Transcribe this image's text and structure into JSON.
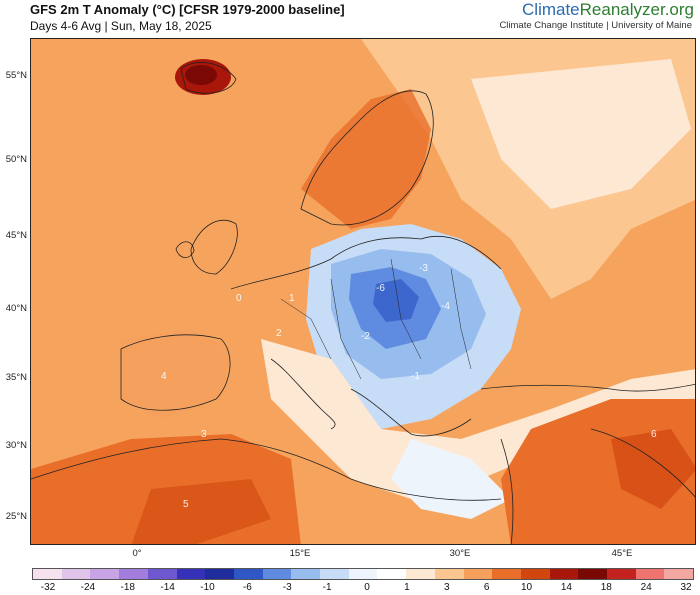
{
  "header": {
    "title": "GFS 2m T Anomaly (°C) [CFSR 1979-2000 baseline]",
    "subtitle": "Days 4-6 Avg | Sun, May 18, 2025",
    "brand_climate": "Climate",
    "brand_reanalyzer": "Reanalyzer",
    "brand_org": ".org",
    "brand_sub": "Climate Change Institute | University of Maine"
  },
  "axes": {
    "lat_labels": [
      "55°N",
      "50°N",
      "45°N",
      "40°N",
      "35°N",
      "30°N",
      "25°N"
    ],
    "lon_labels": [
      "0°",
      "15°E",
      "30°E",
      "45°E"
    ]
  },
  "colorbar": {
    "labels": [
      "-32",
      "-24",
      "-18",
      "-14",
      "-10",
      "-6",
      "-3",
      "-1",
      "0",
      "1",
      "3",
      "6",
      "10",
      "14",
      "18",
      "24",
      "32"
    ],
    "colors": [
      "#f6e1ef",
      "#e0c4ea",
      "#c8a4e6",
      "#a27ddd",
      "#6f57cf",
      "#3531b8",
      "#1f2c9c",
      "#2f57c5",
      "#5f8ce0",
      "#97bdee",
      "#c7dcf6",
      "#eef4fc",
      "#ffffff",
      "#fde8d3",
      "#fbc690",
      "#f5a05d",
      "#e86e2a",
      "#d1460f",
      "#a8170a",
      "#7a0906",
      "#c3221e",
      "#ef7470",
      "#f3a7a3"
    ]
  },
  "map_annotations": [
    "-6",
    "-4",
    "-3",
    "-2",
    "-1",
    "0",
    "1",
    "2",
    "3",
    "4",
    "5",
    "6"
  ],
  "colors": {
    "ocean_warm": "#f6a45d",
    "cold": "#5f8ce0",
    "hot": "#d1460f"
  }
}
